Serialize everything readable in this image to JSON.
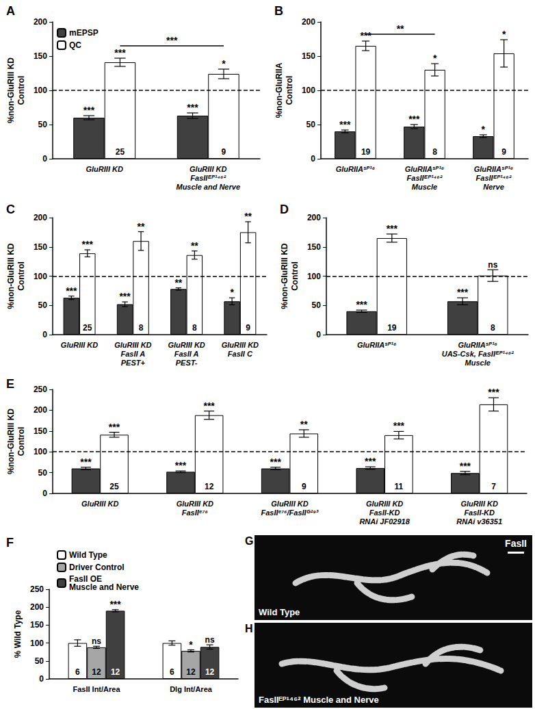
{
  "chart_data": [
    {
      "type": "bar",
      "title": "A",
      "y_label": "%non-GluRIII KD\nControl",
      "categories": [
        "GluRIII KD",
        "GluRIII KD\nFasIIᴱᴾ¹⁴⁶²\nMuscle and Nerve"
      ],
      "ylim": [
        0,
        200
      ],
      "yticks": [
        0,
        50,
        100,
        150,
        200
      ],
      "grid": false,
      "legend": "top-left",
      "reference_line": 100,
      "series": [
        {
          "name": "mEPSP",
          "color": "#404040",
          "values": [
            60,
            63
          ],
          "errors": [
            3,
            4
          ],
          "significance": [
            "***",
            "***"
          ]
        },
        {
          "name": "QC",
          "color": "#ffffff",
          "values": [
            141,
            124
          ],
          "errors": [
            6,
            7
          ],
          "significance": [
            "***",
            "*"
          ],
          "n": [
            25,
            9
          ]
        }
      ],
      "brackets": [
        {
          "series": "QC",
          "from": 0,
          "to": 1,
          "y": 165,
          "label": "***"
        }
      ]
    },
    {
      "type": "bar",
      "title": "B",
      "y_label": "%non-GluRIIA\nControl",
      "categories": [
        "GluRIIAˢᴾ¹⁶",
        "GluRIIAˢᴾ¹⁶\nFasIIᴱᴾ¹⁴⁶²\nMuscle",
        "GluRIIAˢᴾ¹⁶\nFasIIᴱᴾ¹⁴⁶²\nNerve"
      ],
      "ylim": [
        0,
        200
      ],
      "yticks": [
        0,
        50,
        100,
        150,
        200
      ],
      "grid": false,
      "reference_line": 100,
      "series": [
        {
          "name": "mEPSP",
          "color": "#404040",
          "values": [
            40,
            47,
            33
          ],
          "errors": [
            2,
            3,
            2
          ],
          "significance": [
            "***",
            "***",
            "*"
          ]
        },
        {
          "name": "QC",
          "color": "#ffffff",
          "values": [
            165,
            130,
            154
          ],
          "errors": [
            7,
            9,
            20
          ],
          "significance": [
            "***",
            "*",
            "*"
          ],
          "n": [
            19,
            8,
            9
          ]
        }
      ],
      "brackets": [
        {
          "series": "QC",
          "from": 0,
          "to": 1,
          "y": 182,
          "label": "**"
        }
      ]
    },
    {
      "type": "bar",
      "title": "C",
      "y_label": "%non-GluRIII KD\nControl",
      "categories": [
        "GluRIII KD",
        "GluRIII KD\nFasII A\nPEST+",
        "GluRIII KD\nFasII A\nPEST-",
        "GluRIII KD\nFasII C"
      ],
      "ylim": [
        0,
        200
      ],
      "yticks": [
        0,
        50,
        100,
        150,
        200
      ],
      "grid": false,
      "reference_line": 100,
      "series": [
        {
          "name": "mEPSP",
          "color": "#404040",
          "values": [
            63,
            52,
            78,
            57
          ],
          "errors": [
            3,
            4,
            2,
            6
          ],
          "significance": [
            "***",
            "***",
            "**",
            "*"
          ]
        },
        {
          "name": "QC",
          "color": "#ffffff",
          "values": [
            139,
            160,
            136,
            175
          ],
          "errors": [
            6,
            16,
            7,
            18
          ],
          "significance": [
            "***",
            "**",
            "**",
            "**"
          ],
          "n": [
            25,
            8,
            8,
            9
          ]
        }
      ]
    },
    {
      "type": "bar",
      "title": "D",
      "y_label": "%non-GluRIII KD\nControl",
      "categories": [
        "GluRIIAˢᴾ¹⁶",
        "GluRIIAˢᴾ¹⁶\nUAS-Csk, FasIIᴱᴾ¹⁴⁶²\nMuscle"
      ],
      "ylim": [
        0,
        200
      ],
      "yticks": [
        0,
        50,
        100,
        150,
        200
      ],
      "grid": false,
      "reference_line": 100,
      "series": [
        {
          "name": "mEPSP",
          "color": "#404040",
          "values": [
            40,
            57
          ],
          "errors": [
            2,
            6
          ],
          "significance": [
            "***",
            "***"
          ]
        },
        {
          "name": "QC",
          "color": "#ffffff",
          "values": [
            165,
            101
          ],
          "errors": [
            7,
            10
          ],
          "significance": [
            "***",
            "ns"
          ],
          "n": [
            19,
            8
          ]
        }
      ]
    },
    {
      "type": "bar",
      "title": "E",
      "y_label": "%non-GluRIII KD\nControl",
      "categories": [
        "GluRIII KD",
        "GluRIII KD\nFasIIᵉ⁷⁶",
        "GluRIII KD\nFasIIᵉ⁷⁶/FasIIᴳ²⁹³",
        "GluRIII KD\nFasII-KD\nRNAi JF02918",
        "GluRIII KD\nFasII-KD\nRNAi v36351"
      ],
      "ylim": [
        0,
        250
      ],
      "yticks": [
        0,
        50,
        100,
        150,
        200,
        250
      ],
      "grid": false,
      "reference_line": 100,
      "series": [
        {
          "name": "mEPSP",
          "color": "#404040",
          "values": [
            60,
            52,
            60,
            61,
            49
          ],
          "errors": [
            3,
            2,
            3,
            3,
            4
          ],
          "significance": [
            "***",
            "***",
            "***",
            "***",
            "***"
          ]
        },
        {
          "name": "QC",
          "color": "#ffffff",
          "values": [
            141,
            188,
            144,
            140,
            214
          ],
          "errors": [
            6,
            10,
            9,
            9,
            16
          ],
          "significance": [
            "***",
            "***",
            "**",
            "***",
            "***"
          ],
          "n": [
            25,
            12,
            9,
            11,
            7
          ]
        }
      ]
    },
    {
      "type": "bar",
      "title": "F",
      "y_label": "% Wild Type",
      "categories": [
        "FasII Int/Area",
        "Dlg Int/Area"
      ],
      "ylim": [
        0,
        250
      ],
      "yticks": [
        0,
        50,
        100,
        150,
        200,
        250
      ],
      "grid": false,
      "legend": "top-left",
      "series": [
        {
          "name": "Wild Type",
          "color": "#ffffff",
          "values": [
            100,
            100
          ],
          "errors": [
            9,
            6
          ],
          "significance": [
            null,
            null
          ],
          "n": [
            6,
            6
          ]
        },
        {
          "name": "Driver Control",
          "color": "#a6a6a6",
          "values": [
            88,
            78
          ],
          "errors": [
            3,
            3
          ],
          "significance": [
            "ns",
            "*"
          ],
          "n": [
            12,
            12
          ]
        },
        {
          "name": "FasII OE\nMuscle and Nerve",
          "color": "#404040",
          "values": [
            190,
            89
          ],
          "errors": [
            3,
            6
          ],
          "significance": [
            "***",
            "ns"
          ],
          "n": [
            12,
            12
          ]
        }
      ]
    }
  ],
  "images": [
    {
      "panel": "G",
      "labels": [
        "FasII",
        "Wild Type"
      ]
    },
    {
      "panel": "H",
      "labels": [
        "FasIIᴱᴾ¹⁴⁶² Muscle and Nerve"
      ]
    }
  ]
}
